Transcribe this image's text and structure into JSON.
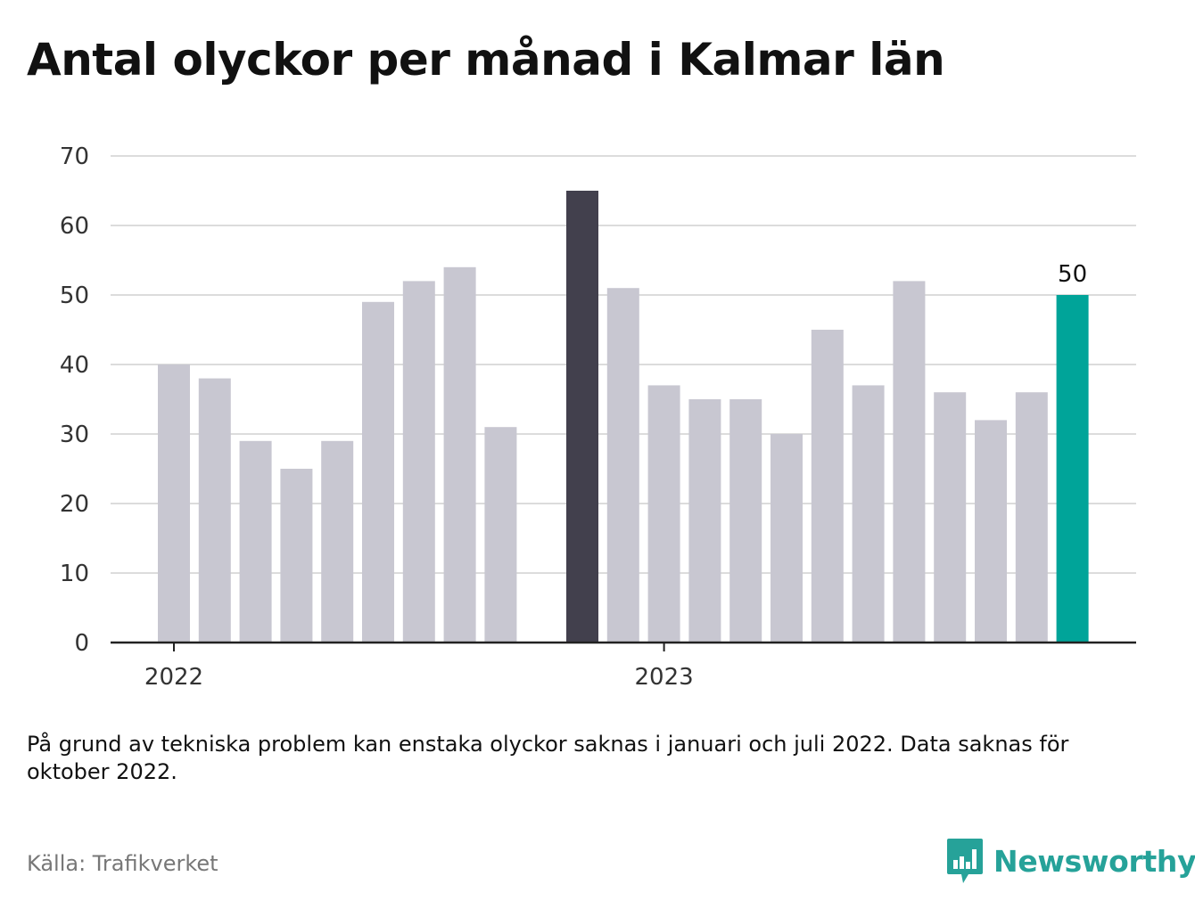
{
  "title": "Antal olyckor per månad i Kalmar län",
  "note": "På grund av tekniska problem kan enstaka olyckor saknas i januari och juli 2022. Data saknas för oktober 2022.",
  "source": "Källa: Trafikverket",
  "brand": {
    "name": "Newsworthy",
    "icon": "newsworthy-logo-icon",
    "color": "#26a299"
  },
  "chart_data": {
    "type": "bar",
    "title": "Antal olyckor per månad i Kalmar län",
    "xlabel": "",
    "ylabel": "",
    "ylim": [
      0,
      70
    ],
    "yticks": [
      0,
      10,
      20,
      30,
      40,
      50,
      60,
      70
    ],
    "grid": true,
    "x_tick_labels": [
      {
        "label": "2022",
        "at_index": 0
      },
      {
        "label": "2023",
        "at_index": 12
      }
    ],
    "colors": {
      "default": "#c8c7d1",
      "highlight_dark": "#42404d",
      "highlight_latest": "#00a499",
      "axis": "#222222",
      "grid": "#dcdcdc"
    },
    "bars": [
      {
        "index": 0,
        "value": 40,
        "style": "default"
      },
      {
        "index": 1,
        "value": 38,
        "style": "default"
      },
      {
        "index": 2,
        "value": 29,
        "style": "default"
      },
      {
        "index": 3,
        "value": 25,
        "style": "default"
      },
      {
        "index": 4,
        "value": 29,
        "style": "default"
      },
      {
        "index": 5,
        "value": 49,
        "style": "default"
      },
      {
        "index": 6,
        "value": 52,
        "style": "default"
      },
      {
        "index": 7,
        "value": 54,
        "style": "default"
      },
      {
        "index": 8,
        "value": 31,
        "style": "default"
      },
      {
        "index": 9,
        "value": null,
        "style": "default"
      },
      {
        "index": 10,
        "value": 65,
        "style": "highlight_dark"
      },
      {
        "index": 11,
        "value": 51,
        "style": "default"
      },
      {
        "index": 12,
        "value": 37,
        "style": "default"
      },
      {
        "index": 13,
        "value": 35,
        "style": "default"
      },
      {
        "index": 14,
        "value": 35,
        "style": "default"
      },
      {
        "index": 15,
        "value": 30,
        "style": "default"
      },
      {
        "index": 16,
        "value": 45,
        "style": "default"
      },
      {
        "index": 17,
        "value": 37,
        "style": "default"
      },
      {
        "index": 18,
        "value": 52,
        "style": "default"
      },
      {
        "index": 19,
        "value": 36,
        "style": "default"
      },
      {
        "index": 20,
        "value": 32,
        "style": "default"
      },
      {
        "index": 21,
        "value": 36,
        "style": "default"
      },
      {
        "index": 22,
        "value": 50,
        "style": "highlight_latest",
        "label": "50"
      }
    ]
  }
}
